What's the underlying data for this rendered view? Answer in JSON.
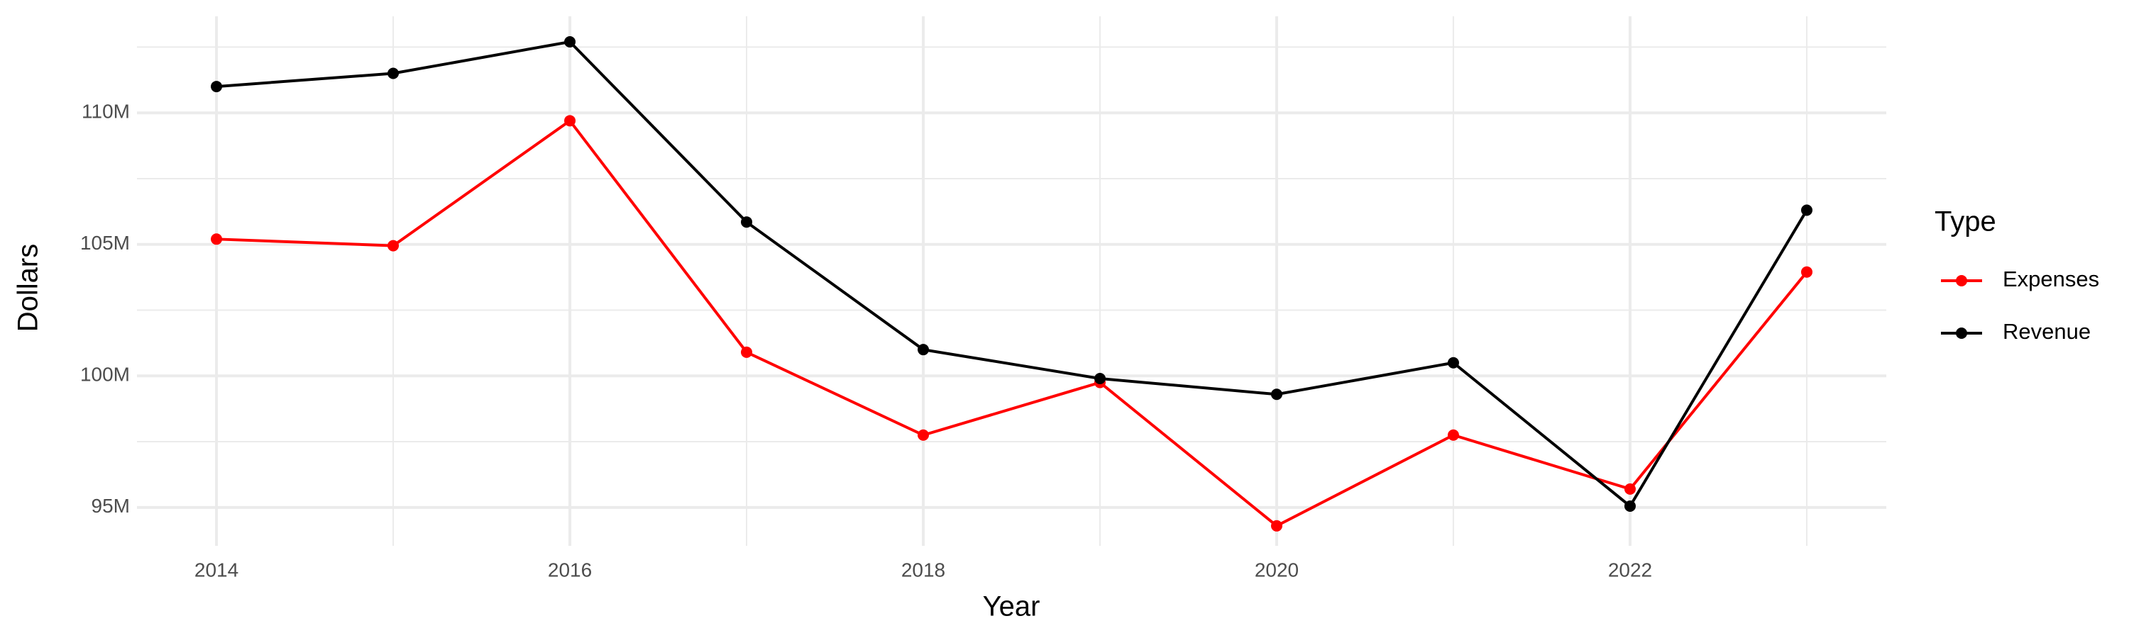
{
  "chart_data": {
    "type": "line",
    "x_label": "Year",
    "y_label": "Dollars",
    "legend_title": "Type",
    "legend_position": "right",
    "x": [
      2014,
      2015,
      2016,
      2017,
      2018,
      2019,
      2020,
      2021,
      2022,
      2023
    ],
    "series": [
      {
        "name": "Expenses",
        "color": "#ff0000",
        "values": [
          105200000,
          104950000,
          109700000,
          100900000,
          97750000,
          99750000,
          94300000,
          97750000,
          95700000,
          103950000
        ]
      },
      {
        "name": "Revenue",
        "color": "#000000",
        "values": [
          111000000,
          111500000,
          112700000,
          105850000,
          101000000,
          99900000,
          99300000,
          100500000,
          95050000,
          106300000
        ]
      }
    ],
    "xlim": [
      2013.55,
      2023.45
    ],
    "ylim": [
      93540000,
      113670000
    ],
    "xticks": [
      2014,
      2016,
      2018,
      2020,
      2022
    ],
    "yticks": [
      {
        "value": 95000000,
        "label": "95M"
      },
      {
        "value": 100000000,
        "label": "100M"
      },
      {
        "value": 105000000,
        "label": "105M"
      },
      {
        "value": 110000000,
        "label": "110M"
      }
    ],
    "x_minor_ticks": [
      2015,
      2017,
      2019,
      2021,
      2023
    ],
    "y_minor_ticks": [
      97500000,
      102500000,
      107500000,
      112500000
    ],
    "grid": true
  }
}
